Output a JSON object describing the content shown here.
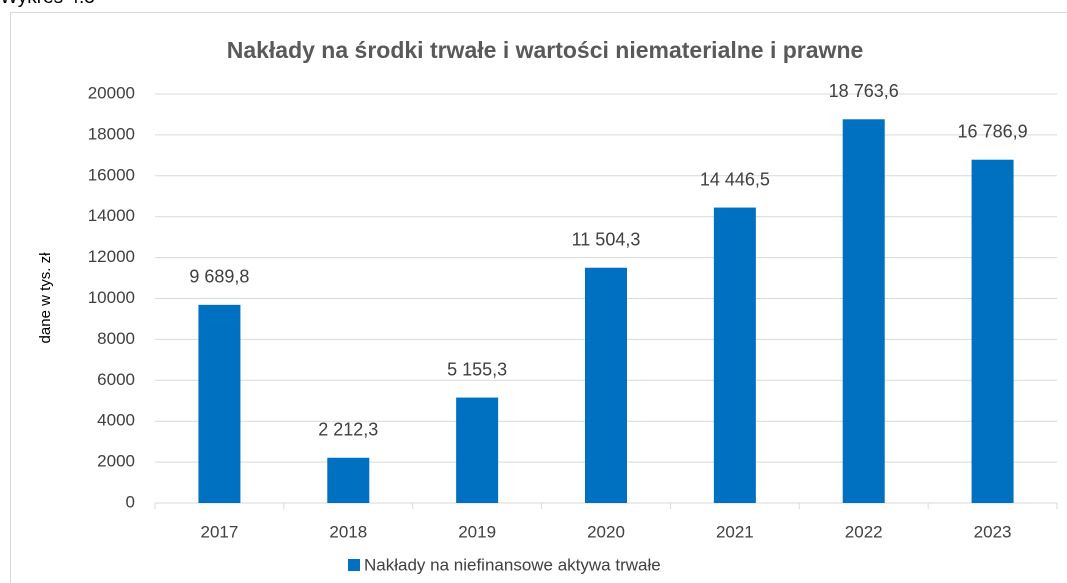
{
  "caption": "Wykres 4.3",
  "chart_data": {
    "type": "bar",
    "title": "Nakłady na środki trwałe i wartości niematerialne i prawne",
    "y_label": "dane w tys. zł",
    "categories": [
      "2017",
      "2018",
      "2019",
      "2020",
      "2021",
      "2022",
      "2023"
    ],
    "series": [
      {
        "name": "Nakłady na niefinansowe aktywa trwałe",
        "color": "#0070c0",
        "values": [
          9689.8,
          2212.3,
          5155.3,
          11504.3,
          14446.5,
          18763.6,
          16786.9
        ],
        "value_labels": [
          "9 689,8",
          "2 212,3",
          "5 155,3",
          "11 504,3",
          "14 446,5",
          "18 763,6",
          "16 786,9"
        ]
      }
    ],
    "ylim": [
      0,
      20000
    ],
    "yticks": [
      0,
      2000,
      4000,
      6000,
      8000,
      10000,
      12000,
      14000,
      16000,
      18000,
      20000
    ],
    "grid": true,
    "legend": "bottom"
  }
}
